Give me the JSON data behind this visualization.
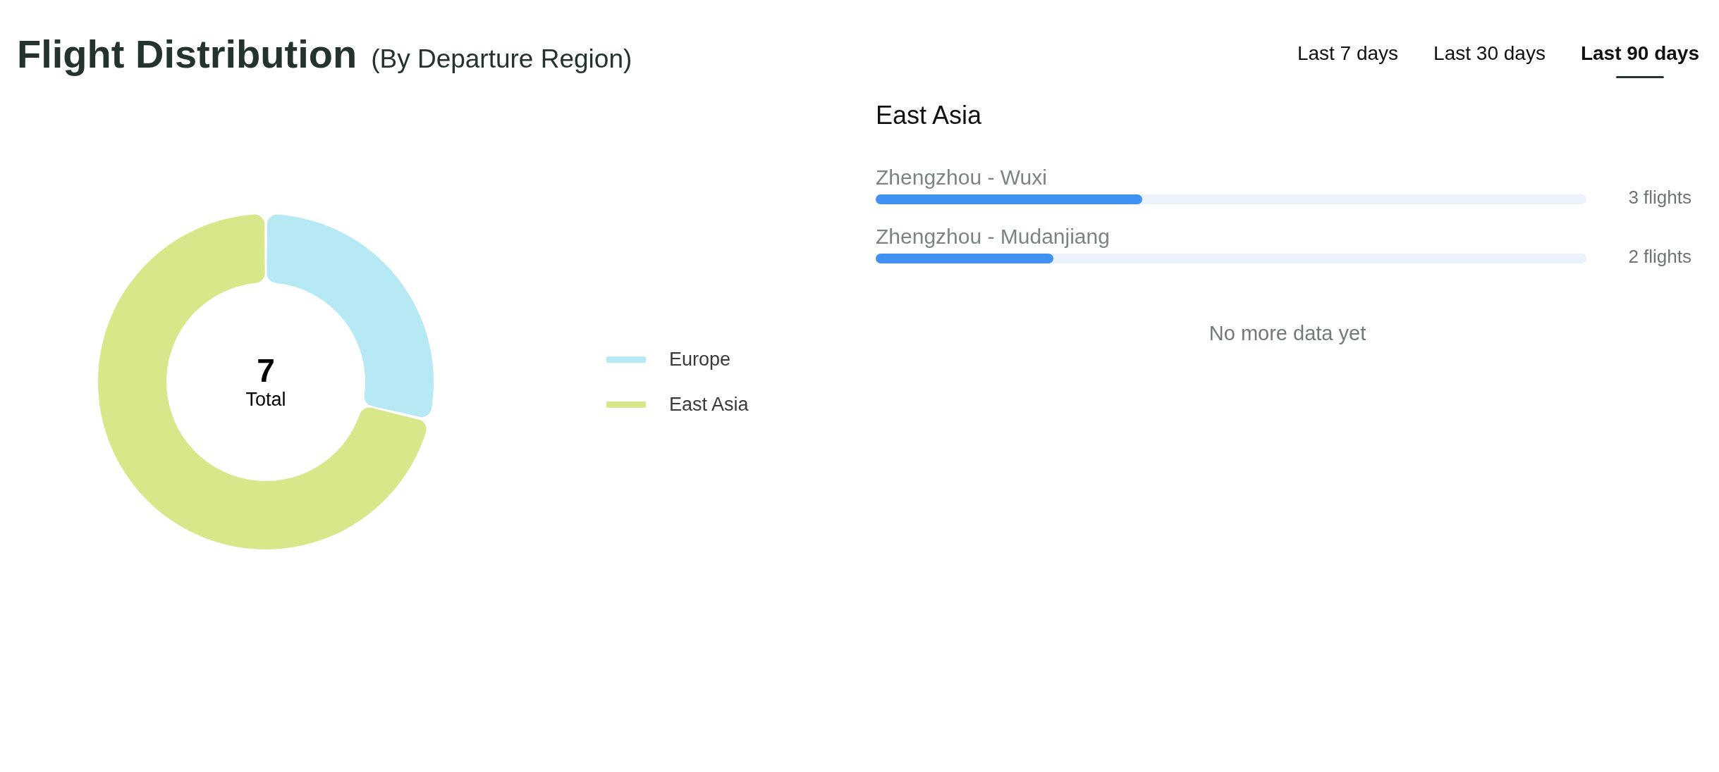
{
  "chart_data": [
    {
      "type": "donut",
      "title": "Flight Distribution",
      "subtitle": "(By Departure Region)",
      "categories": [
        "Europe",
        "East Asia"
      ],
      "values": [
        28.6,
        71.4
      ],
      "colors": [
        "#b7e9f4",
        "#d9e78b"
      ],
      "legend": "right",
      "annotations": [
        "7",
        "Total"
      ]
    },
    {
      "type": "other",
      "annotations": [
        "Last 7 days",
        "Last 30 days",
        "Last 90 days"
      ]
    },
    {
      "type": "bar",
      "orientation": "horizontal",
      "title": "East Asia",
      "categories": [
        "Zhengzhou - Wuxi",
        "Zhengzhou - Mudanjiang"
      ],
      "values": [
        3,
        2
      ],
      "color": "#4191f2",
      "xlim": [
        0,
        8
      ],
      "value_labels": [
        "3 flights",
        "2 flights"
      ],
      "tick_labels": "y",
      "annotations": [
        "No more data yet"
      ]
    }
  ]
}
